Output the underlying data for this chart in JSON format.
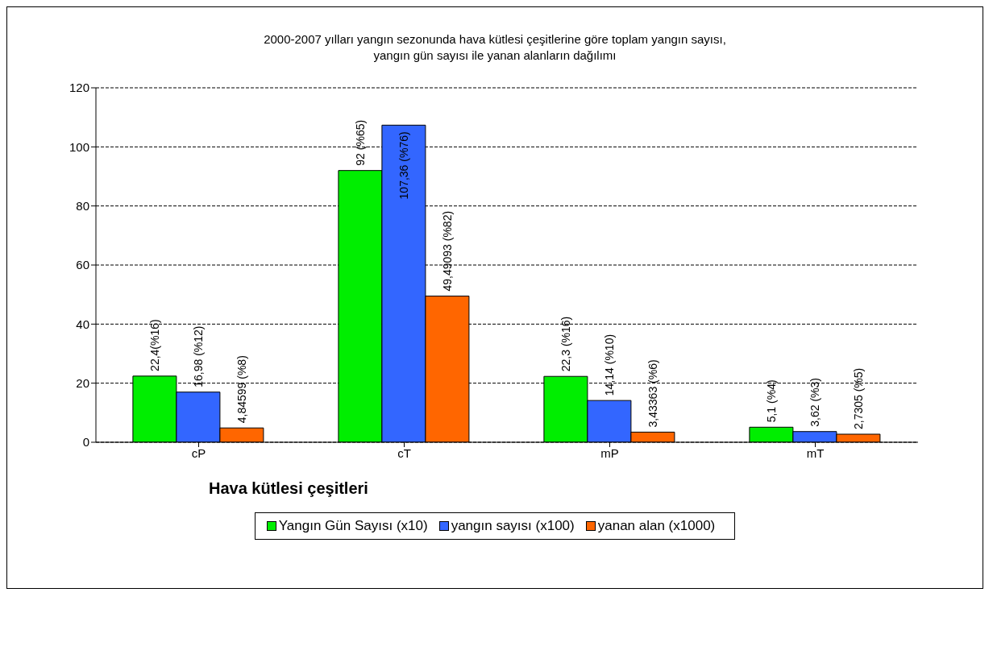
{
  "chart_data": {
    "type": "bar",
    "title": "2000-2007 yılları yangın sezonunda  hava kütlesi çeşitlerine  göre toplam yangın sayısı,\nyangın gün sayısı  ile yanan alanların  dağılımı",
    "xlabel": "Hava kütlesi çeşitleri",
    "categories": [
      "cP",
      "cT",
      "mP",
      "mT"
    ],
    "series": [
      {
        "name": "Yangın Gün Sayısı (x10)",
        "color": "#00ee00",
        "values": [
          22.4,
          92,
          22.3,
          5.1
        ],
        "value_labels": [
          "22,4(%16)",
          "92 (%65)",
          "22,3 (%16)",
          "5,1 (%4)"
        ]
      },
      {
        "name": "yangın sayısı (x100)",
        "color": "#3366ff",
        "values": [
          16.98,
          107.36,
          14.14,
          3.62
        ],
        "value_labels": [
          "16,98 (%12)",
          "107,36 (%76)",
          "14,14 (%10)",
          "3,62 (%3)"
        ]
      },
      {
        "name": "yanan alan (x1000)",
        "color": "#ff6600",
        "values": [
          4.84599,
          49.49093,
          3.43363,
          2.7305
        ],
        "value_labels": [
          "4,84599 (%8)",
          "49,49093 (%82)",
          "3,43363 (%6)",
          "2,7305 (%5)"
        ]
      }
    ],
    "ylim": [
      0,
      120
    ],
    "yticks": [
      0,
      20,
      40,
      60,
      80,
      100,
      120
    ],
    "grid": "y",
    "legend": "bottom"
  }
}
